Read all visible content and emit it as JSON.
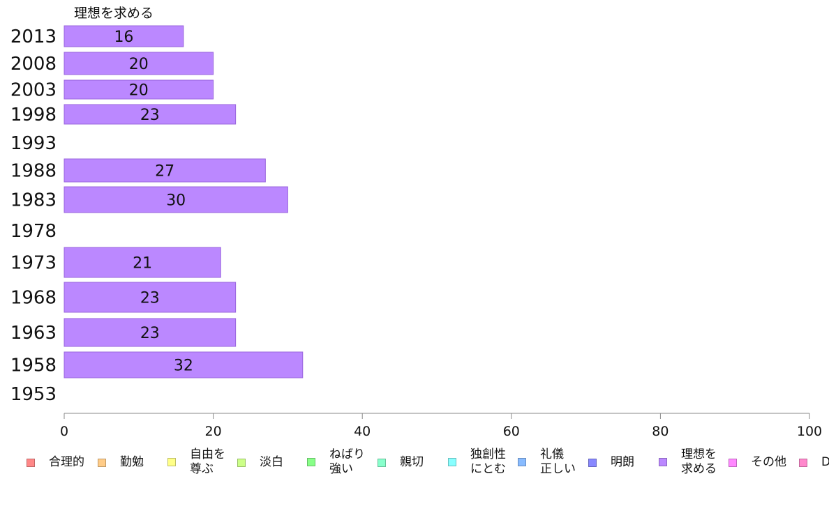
{
  "chart_data": {
    "type": "bar",
    "orientation": "horizontal",
    "title": "",
    "categories": [
      "2013",
      "2008",
      "2003",
      "1998",
      "1993",
      "1988",
      "1983",
      "1978",
      "1973",
      "1968",
      "1963",
      "1958",
      "1953"
    ],
    "series": [
      {
        "name": "理想を求める",
        "color": "#bb88ff",
        "values": [
          16,
          20,
          20,
          23,
          null,
          27,
          30,
          null,
          21,
          23,
          23,
          32,
          null
        ],
        "value_labels": [
          "16",
          "20",
          "20",
          "23",
          "",
          "27",
          "30",
          "",
          "21",
          "23",
          "23",
          "32",
          ""
        ]
      }
    ],
    "top_label": "理想を求める",
    "xlim": [
      0,
      100
    ],
    "x_ticks": [
      "0",
      "20",
      "40",
      "60",
      "80",
      "100"
    ],
    "grid": false,
    "legend_position": "bottom",
    "legend": [
      {
        "label": "合理的",
        "color": "#ff8888"
      },
      {
        "label": "勤勉",
        "color": "#ffcc88"
      },
      {
        "label": "自由を\n尊ぶ",
        "color": "#ffff88"
      },
      {
        "label": "淡白",
        "color": "#ccff88"
      },
      {
        "label": "ねばり\n強い",
        "color": "#88ff88"
      },
      {
        "label": "親切",
        "color": "#88ffcc"
      },
      {
        "label": "独創性\nにとむ",
        "color": "#88ffff"
      },
      {
        "label": "礼儀\n正しい",
        "color": "#88bbff"
      },
      {
        "label": "明朗",
        "color": "#8888ff"
      },
      {
        "label": "理想を\n求める",
        "color": "#bb88ff"
      },
      {
        "label": "その他",
        "color": "#ff88ff"
      },
      {
        "label": "D",
        "color": "#ff88cc"
      }
    ]
  }
}
